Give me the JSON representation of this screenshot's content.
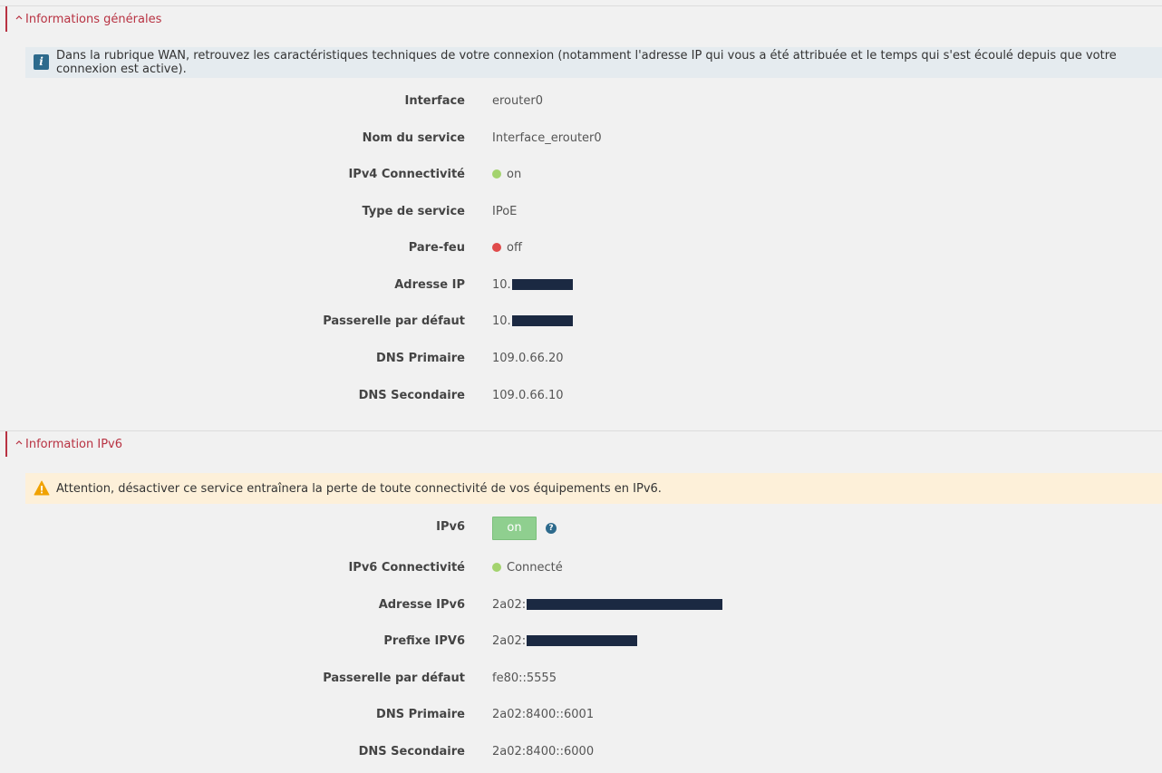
{
  "sections": {
    "general": {
      "title": "Informations générales",
      "banner": "Dans la rubrique WAN, retrouvez les caractéristiques techniques de votre connexion (notamment l'adresse IP qui vous a été attribuée et le temps qui s'est écoulé depuis que votre connexion est active).",
      "rows": {
        "interface": {
          "label": "Interface",
          "value": "erouter0"
        },
        "service_name": {
          "label": "Nom du service",
          "value": "Interface_erouter0"
        },
        "ipv4": {
          "label": "IPv4 Connectivité",
          "value": "on",
          "status_color": "#a3d36e"
        },
        "service_type": {
          "label": "Type de service",
          "value": "IPoE"
        },
        "firewall": {
          "label": "Pare-feu",
          "value": "off",
          "status_color": "#e04b4b"
        },
        "ip": {
          "label": "Adresse IP",
          "value": "10."
        },
        "gateway": {
          "label": "Passerelle par défaut",
          "value": "10."
        },
        "dns1": {
          "label": "DNS Primaire",
          "value": "109.0.66.20"
        },
        "dns2": {
          "label": "DNS Secondaire",
          "value": "109.0.66.10"
        }
      }
    },
    "ipv6": {
      "title": "Information IPv6",
      "banner": "Attention, désactiver ce service entraînera la perte de toute connectivité de vos équipements en IPv6.",
      "rows": {
        "ipv6": {
          "label": "IPv6",
          "toggle": "on",
          "help": "?"
        },
        "connectivity": {
          "label": "IPv6 Connectivité",
          "value": "Connecté",
          "status_color": "#a3d36e"
        },
        "address": {
          "label": "Adresse IPv6",
          "value": "2a02:"
        },
        "prefix": {
          "label": "Prefixe IPV6",
          "value": "2a02:"
        },
        "gateway": {
          "label": "Passerelle par défaut",
          "value": "fe80::5555"
        },
        "dns1": {
          "label": "DNS Primaire",
          "value": "2a02:8400::6001"
        },
        "dns2": {
          "label": "DNS Secondaire",
          "value": "2a02:8400::6000"
        }
      }
    }
  },
  "colors": {
    "accent": "#b83242",
    "redaction": "#1b2942",
    "info_bg": "#e5ebef",
    "warn_bg": "#fdf0d9",
    "toggle_on": "#8fcf8f"
  },
  "icons": [
    "chevron-up-icon",
    "info-icon",
    "warning-icon",
    "help-icon"
  ]
}
